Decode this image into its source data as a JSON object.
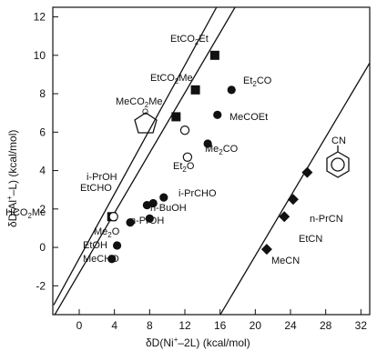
{
  "chart_data": {
    "type": "scatter",
    "title": "",
    "xlabel": "δD(Ni⁺–2L) (kcal/mol)",
    "ylabel": "δD(Al⁺–L) (kcal/mol)",
    "xlim": [
      -3,
      33
    ],
    "ylim": [
      -3.5,
      12.5
    ],
    "xticks": [
      0,
      4,
      8,
      12,
      16,
      20,
      24,
      28,
      32
    ],
    "yticks": [
      -2,
      0,
      2,
      4,
      6,
      8,
      10,
      12
    ],
    "grid": false,
    "legend": "none",
    "series": [
      {
        "marker": "square-filled",
        "points": [
          {
            "x": 15.4,
            "y": 10.0,
            "label": "EtCO₂Et"
          },
          {
            "x": 13.2,
            "y": 8.2,
            "label": "EtCO₂Me"
          },
          {
            "x": 11.0,
            "y": 6.8,
            "label": "MeCO₂Me"
          },
          {
            "x": 3.7,
            "y": 1.6,
            "label": "HCO₂Me"
          }
        ]
      },
      {
        "marker": "circle-filled",
        "points": [
          {
            "x": 17.3,
            "y": 8.2,
            "label": "Et₂CO"
          },
          {
            "x": 15.7,
            "y": 6.9,
            "label": "MeCOEt"
          },
          {
            "x": 14.6,
            "y": 5.4,
            "label": "Me₂CO"
          },
          {
            "x": 9.6,
            "y": 2.6,
            "label": "i-PrCHO"
          },
          {
            "x": 7.7,
            "y": 2.2,
            "label": "i-PrOH"
          },
          {
            "x": 8.4,
            "y": 2.3,
            "label": "EtCHO"
          },
          {
            "x": 8.0,
            "y": 1.5,
            "label": "n-BuOH"
          },
          {
            "x": 5.8,
            "y": 1.3,
            "label": "n-PrOH"
          },
          {
            "x": 4.3,
            "y": 0.1,
            "label": "Me₂O"
          },
          {
            "x": 3.7,
            "y": -0.6,
            "label": "EtOH / MeCHO"
          }
        ]
      },
      {
        "marker": "circle-open",
        "points": [
          {
            "x": 12.0,
            "y": 6.1,
            "label": "THF"
          },
          {
            "x": 12.3,
            "y": 4.7,
            "label": "Et₂O"
          },
          {
            "x": 3.9,
            "y": 1.6,
            "label": ""
          }
        ]
      },
      {
        "marker": "diamond-filled",
        "points": [
          {
            "x": 25.9,
            "y": 3.9,
            "label": "PhCN"
          },
          {
            "x": 24.3,
            "y": 2.5,
            "label": "n-PrCN"
          },
          {
            "x": 23.3,
            "y": 1.6,
            "label": "EtCN"
          },
          {
            "x": 21.3,
            "y": -0.1,
            "label": "MeCN"
          }
        ]
      }
    ],
    "lines": [
      {
        "x1": -2.9,
        "y1": -3.0,
        "x2": 15.6,
        "y2": 12.5
      },
      {
        "x1": -2.9,
        "y1": -3.6,
        "x2": 17.7,
        "y2": 12.5
      },
      {
        "x1": 15.9,
        "y1": -3.6,
        "x2": 33.0,
        "y2": 9.6
      }
    ]
  }
}
